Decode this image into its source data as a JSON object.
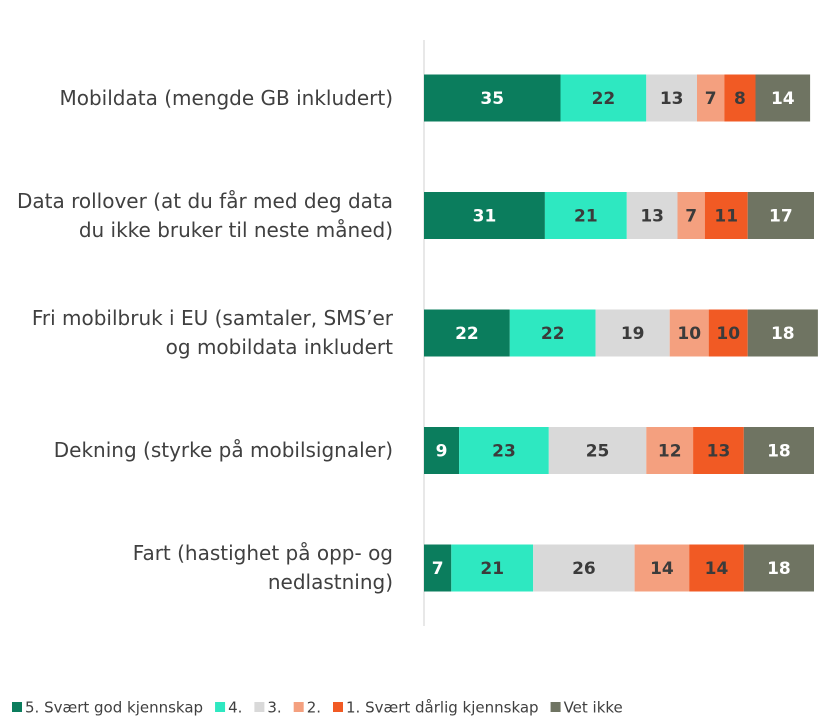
{
  "chart_data": {
    "type": "stacked-bar-horizontal",
    "categories": [
      "Mobildata (mengde GB inkludert)",
      "Data rollover (at du får med deg data du ikke bruker til neste måned)",
      "Fri mobilbruk i EU (samtaler, SMS’er og mobildata inkludert",
      "Dekning (styrke på mobilsignaler)",
      "Fart (hastighet på opp- og nedlastning)"
    ],
    "series": [
      {
        "name": "5. Svært god kjennskap",
        "color": "#0b7d5d",
        "values": [
          35,
          31,
          22,
          9,
          7
        ]
      },
      {
        "name": "4.",
        "color": "#2ee8c1",
        "values": [
          22,
          21,
          22,
          23,
          21
        ]
      },
      {
        "name": "3.",
        "color": "#d9d9d9",
        "values": [
          13,
          13,
          19,
          25,
          26
        ]
      },
      {
        "name": "2.",
        "color": "#f4a07f",
        "values": [
          7,
          7,
          10,
          12,
          14
        ]
      },
      {
        "name": "1. Svært dårlig kjennskap",
        "color": "#f15a24",
        "values": [
          8,
          11,
          10,
          13,
          14
        ]
      },
      {
        "name": "Vet ikke",
        "color": "#6f7462",
        "values": [
          14,
          17,
          18,
          18,
          18
        ]
      }
    ],
    "xlim": [
      0,
      100
    ],
    "legend": "bottom"
  }
}
